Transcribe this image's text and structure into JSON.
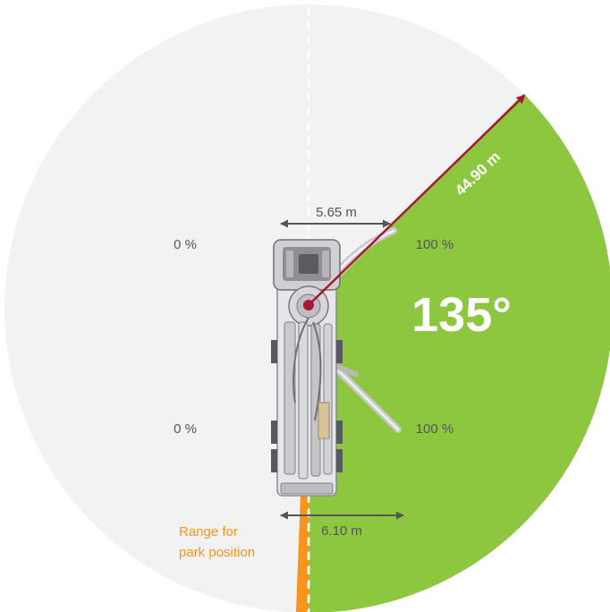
{
  "diagram": {
    "radius_label": "44.90 m",
    "angle_label": "135°",
    "width_top_label": "5.65 m",
    "width_bottom_label": "6.10 m",
    "outrigger_labels": {
      "left_top": "0 %",
      "left_bottom": "0 %",
      "right_top": "100 %",
      "right_bottom": "100 %"
    },
    "park_range_label": [
      "Range for",
      "park position"
    ],
    "slewing_angle_deg": 135,
    "colors": {
      "range_fill": "#8dc63f",
      "background_disc": "#f2f2f3",
      "boom_arrow": "#a6192e",
      "park_range": "#f7941d",
      "dimension_arrow": "#555555",
      "text_dark": "#555555",
      "text_light": "#ffffff"
    },
    "icons": [
      "truck-top-view-icon",
      "boom-arrow-icon",
      "slewing-center-icon"
    ]
  }
}
